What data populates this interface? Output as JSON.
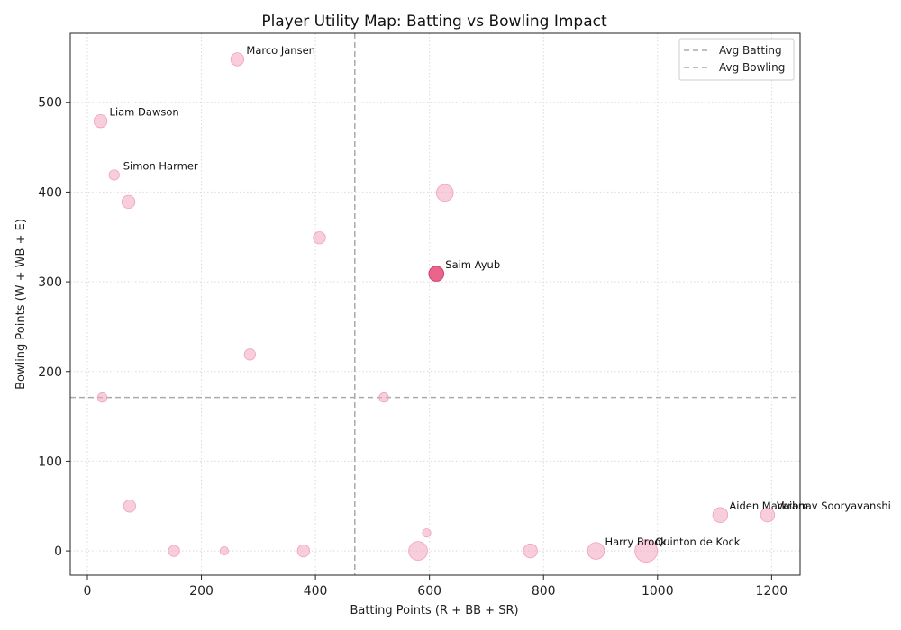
{
  "chart_data": {
    "type": "scatter",
    "title": "Player Utility Map: Batting vs Bowling Impact",
    "xlabel": "Batting Points (R + BB + SR)",
    "ylabel": "Bowling Points (W + WB + E)",
    "xlim": [
      -30,
      1250
    ],
    "ylim": [
      -27,
      577
    ],
    "xticks": [
      0,
      200,
      400,
      600,
      800,
      1000,
      1200
    ],
    "yticks": [
      0,
      100,
      200,
      300,
      400,
      500
    ],
    "avg_batting": 469,
    "avg_bowling": 171,
    "legend": [
      "Avg Batting",
      "Avg Bowling"
    ],
    "highlight_color": "#e75480",
    "point_color": "#f4a6c0",
    "points": [
      {
        "x": 263,
        "y": 548,
        "size": 1.4,
        "label": "Marco Jansen"
      },
      {
        "x": 23,
        "y": 479,
        "size": 1.4,
        "label": "Liam Dawson"
      },
      {
        "x": 47,
        "y": 419,
        "size": 1.1,
        "label": "Simon Harmer"
      },
      {
        "x": 72,
        "y": 389,
        "size": 1.4,
        "label": ""
      },
      {
        "x": 627,
        "y": 399,
        "size": 1.8,
        "label": ""
      },
      {
        "x": 407,
        "y": 349,
        "size": 1.3,
        "label": ""
      },
      {
        "x": 612,
        "y": 309,
        "size": 1.6,
        "label": "Saim Ayub",
        "highlight": true
      },
      {
        "x": 285,
        "y": 219,
        "size": 1.2,
        "label": ""
      },
      {
        "x": 26,
        "y": 171,
        "size": 1.0,
        "label": ""
      },
      {
        "x": 520,
        "y": 171,
        "size": 1.0,
        "label": ""
      },
      {
        "x": 74,
        "y": 50,
        "size": 1.3,
        "label": ""
      },
      {
        "x": 595,
        "y": 20,
        "size": 0.9,
        "label": ""
      },
      {
        "x": 152,
        "y": 0,
        "size": 1.2,
        "label": ""
      },
      {
        "x": 240,
        "y": 0,
        "size": 0.9,
        "label": ""
      },
      {
        "x": 379,
        "y": 0,
        "size": 1.3,
        "label": ""
      },
      {
        "x": 580,
        "y": 0,
        "size": 2.0,
        "label": ""
      },
      {
        "x": 777,
        "y": 0,
        "size": 1.5,
        "label": ""
      },
      {
        "x": 892,
        "y": 0,
        "size": 1.8,
        "label": "Harry Brook"
      },
      {
        "x": 980,
        "y": 0,
        "size": 2.4,
        "label": "Quinton de Kock"
      },
      {
        "x": 1110,
        "y": 40,
        "size": 1.6,
        "label": "Aiden Markram"
      },
      {
        "x": 1193,
        "y": 40,
        "size": 1.5,
        "label": "Vaibhav Sooryavanshi"
      }
    ]
  }
}
